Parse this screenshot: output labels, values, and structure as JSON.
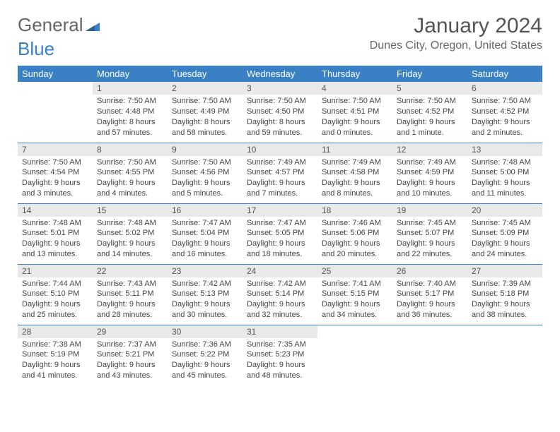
{
  "logo": {
    "text1": "General",
    "text2": "Blue"
  },
  "title": "January 2024",
  "location": "Dunes City, Oregon, United States",
  "header_bg": "#3a80c4",
  "daynum_bg": "#e9e9e9",
  "daysOfWeek": [
    "Sunday",
    "Monday",
    "Tuesday",
    "Wednesday",
    "Thursday",
    "Friday",
    "Saturday"
  ],
  "weeks": [
    [
      null,
      {
        "n": "1",
        "sr": "Sunrise: 7:50 AM",
        "ss": "Sunset: 4:48 PM",
        "d1": "Daylight: 8 hours",
        "d2": "and 57 minutes."
      },
      {
        "n": "2",
        "sr": "Sunrise: 7:50 AM",
        "ss": "Sunset: 4:49 PM",
        "d1": "Daylight: 8 hours",
        "d2": "and 58 minutes."
      },
      {
        "n": "3",
        "sr": "Sunrise: 7:50 AM",
        "ss": "Sunset: 4:50 PM",
        "d1": "Daylight: 8 hours",
        "d2": "and 59 minutes."
      },
      {
        "n": "4",
        "sr": "Sunrise: 7:50 AM",
        "ss": "Sunset: 4:51 PM",
        "d1": "Daylight: 9 hours",
        "d2": "and 0 minutes."
      },
      {
        "n": "5",
        "sr": "Sunrise: 7:50 AM",
        "ss": "Sunset: 4:52 PM",
        "d1": "Daylight: 9 hours",
        "d2": "and 1 minute."
      },
      {
        "n": "6",
        "sr": "Sunrise: 7:50 AM",
        "ss": "Sunset: 4:52 PM",
        "d1": "Daylight: 9 hours",
        "d2": "and 2 minutes."
      }
    ],
    [
      {
        "n": "7",
        "sr": "Sunrise: 7:50 AM",
        "ss": "Sunset: 4:54 PM",
        "d1": "Daylight: 9 hours",
        "d2": "and 3 minutes."
      },
      {
        "n": "8",
        "sr": "Sunrise: 7:50 AM",
        "ss": "Sunset: 4:55 PM",
        "d1": "Daylight: 9 hours",
        "d2": "and 4 minutes."
      },
      {
        "n": "9",
        "sr": "Sunrise: 7:50 AM",
        "ss": "Sunset: 4:56 PM",
        "d1": "Daylight: 9 hours",
        "d2": "and 5 minutes."
      },
      {
        "n": "10",
        "sr": "Sunrise: 7:49 AM",
        "ss": "Sunset: 4:57 PM",
        "d1": "Daylight: 9 hours",
        "d2": "and 7 minutes."
      },
      {
        "n": "11",
        "sr": "Sunrise: 7:49 AM",
        "ss": "Sunset: 4:58 PM",
        "d1": "Daylight: 9 hours",
        "d2": "and 8 minutes."
      },
      {
        "n": "12",
        "sr": "Sunrise: 7:49 AM",
        "ss": "Sunset: 4:59 PM",
        "d1": "Daylight: 9 hours",
        "d2": "and 10 minutes."
      },
      {
        "n": "13",
        "sr": "Sunrise: 7:48 AM",
        "ss": "Sunset: 5:00 PM",
        "d1": "Daylight: 9 hours",
        "d2": "and 11 minutes."
      }
    ],
    [
      {
        "n": "14",
        "sr": "Sunrise: 7:48 AM",
        "ss": "Sunset: 5:01 PM",
        "d1": "Daylight: 9 hours",
        "d2": "and 13 minutes."
      },
      {
        "n": "15",
        "sr": "Sunrise: 7:48 AM",
        "ss": "Sunset: 5:02 PM",
        "d1": "Daylight: 9 hours",
        "d2": "and 14 minutes."
      },
      {
        "n": "16",
        "sr": "Sunrise: 7:47 AM",
        "ss": "Sunset: 5:04 PM",
        "d1": "Daylight: 9 hours",
        "d2": "and 16 minutes."
      },
      {
        "n": "17",
        "sr": "Sunrise: 7:47 AM",
        "ss": "Sunset: 5:05 PM",
        "d1": "Daylight: 9 hours",
        "d2": "and 18 minutes."
      },
      {
        "n": "18",
        "sr": "Sunrise: 7:46 AM",
        "ss": "Sunset: 5:06 PM",
        "d1": "Daylight: 9 hours",
        "d2": "and 20 minutes."
      },
      {
        "n": "19",
        "sr": "Sunrise: 7:45 AM",
        "ss": "Sunset: 5:07 PM",
        "d1": "Daylight: 9 hours",
        "d2": "and 22 minutes."
      },
      {
        "n": "20",
        "sr": "Sunrise: 7:45 AM",
        "ss": "Sunset: 5:09 PM",
        "d1": "Daylight: 9 hours",
        "d2": "and 24 minutes."
      }
    ],
    [
      {
        "n": "21",
        "sr": "Sunrise: 7:44 AM",
        "ss": "Sunset: 5:10 PM",
        "d1": "Daylight: 9 hours",
        "d2": "and 25 minutes."
      },
      {
        "n": "22",
        "sr": "Sunrise: 7:43 AM",
        "ss": "Sunset: 5:11 PM",
        "d1": "Daylight: 9 hours",
        "d2": "and 28 minutes."
      },
      {
        "n": "23",
        "sr": "Sunrise: 7:42 AM",
        "ss": "Sunset: 5:13 PM",
        "d1": "Daylight: 9 hours",
        "d2": "and 30 minutes."
      },
      {
        "n": "24",
        "sr": "Sunrise: 7:42 AM",
        "ss": "Sunset: 5:14 PM",
        "d1": "Daylight: 9 hours",
        "d2": "and 32 minutes."
      },
      {
        "n": "25",
        "sr": "Sunrise: 7:41 AM",
        "ss": "Sunset: 5:15 PM",
        "d1": "Daylight: 9 hours",
        "d2": "and 34 minutes."
      },
      {
        "n": "26",
        "sr": "Sunrise: 7:40 AM",
        "ss": "Sunset: 5:17 PM",
        "d1": "Daylight: 9 hours",
        "d2": "and 36 minutes."
      },
      {
        "n": "27",
        "sr": "Sunrise: 7:39 AM",
        "ss": "Sunset: 5:18 PM",
        "d1": "Daylight: 9 hours",
        "d2": "and 38 minutes."
      }
    ],
    [
      {
        "n": "28",
        "sr": "Sunrise: 7:38 AM",
        "ss": "Sunset: 5:19 PM",
        "d1": "Daylight: 9 hours",
        "d2": "and 41 minutes."
      },
      {
        "n": "29",
        "sr": "Sunrise: 7:37 AM",
        "ss": "Sunset: 5:21 PM",
        "d1": "Daylight: 9 hours",
        "d2": "and 43 minutes."
      },
      {
        "n": "30",
        "sr": "Sunrise: 7:36 AM",
        "ss": "Sunset: 5:22 PM",
        "d1": "Daylight: 9 hours",
        "d2": "and 45 minutes."
      },
      {
        "n": "31",
        "sr": "Sunrise: 7:35 AM",
        "ss": "Sunset: 5:23 PM",
        "d1": "Daylight: 9 hours",
        "d2": "and 48 minutes."
      },
      null,
      null,
      null
    ]
  ]
}
